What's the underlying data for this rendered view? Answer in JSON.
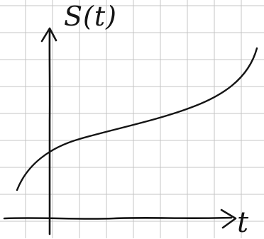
{
  "diagram": {
    "y_axis_label": "S(t)",
    "x_axis_label": "t",
    "background": "grid-paper",
    "grid_color": "#c4c4c4",
    "ink_color": "#141414",
    "curve_shape": "increasing; concave-down then concave-up (S-shaped), crossing the vertical axis above the horizontal axis"
  }
}
